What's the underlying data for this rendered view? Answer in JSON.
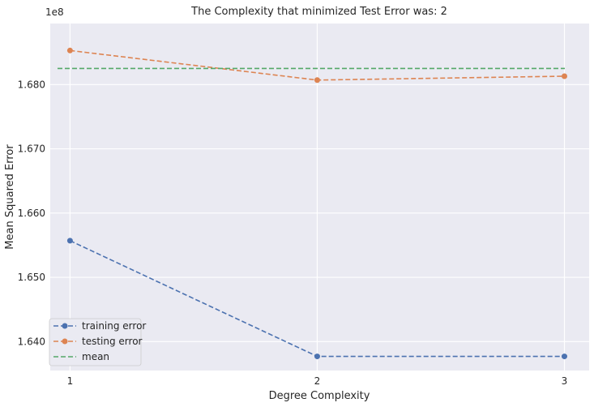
{
  "chart_data": {
    "type": "line",
    "title": "The Complexity that minimized Test Error was: 2",
    "xlabel": "Degree Complexity",
    "ylabel": "Mean Squared Error",
    "offset_label": "1e8",
    "x": [
      1,
      2,
      3
    ],
    "x_ticks": [
      "1",
      "2",
      "3"
    ],
    "y_ticks": [
      "1.640",
      "1.650",
      "1.660",
      "1.670",
      "1.680"
    ],
    "y_tick_values": [
      1.64,
      1.65,
      1.66,
      1.67,
      1.68
    ],
    "ylim": [
      1.6355,
      1.6895
    ],
    "xlim": [
      0.92,
      3.1
    ],
    "series": [
      {
        "name": "training error",
        "values": [
          1.6557,
          1.6377,
          1.6377
        ],
        "color": "#4c72b0",
        "marker": "circle",
        "dashed": true
      },
      {
        "name": "testing error",
        "values": [
          1.6853,
          1.6807,
          1.6813
        ],
        "color": "#dd8452",
        "marker": "circle",
        "dashed": true
      },
      {
        "name": "mean",
        "values": [
          1.6825,
          1.6825,
          1.6825
        ],
        "color": "#55a868",
        "marker": "none",
        "dashed": true
      }
    ],
    "grid": true,
    "legend_position": "lower-left",
    "colors": {
      "background": "#eaeaf2",
      "grid": "#ffffff"
    }
  }
}
